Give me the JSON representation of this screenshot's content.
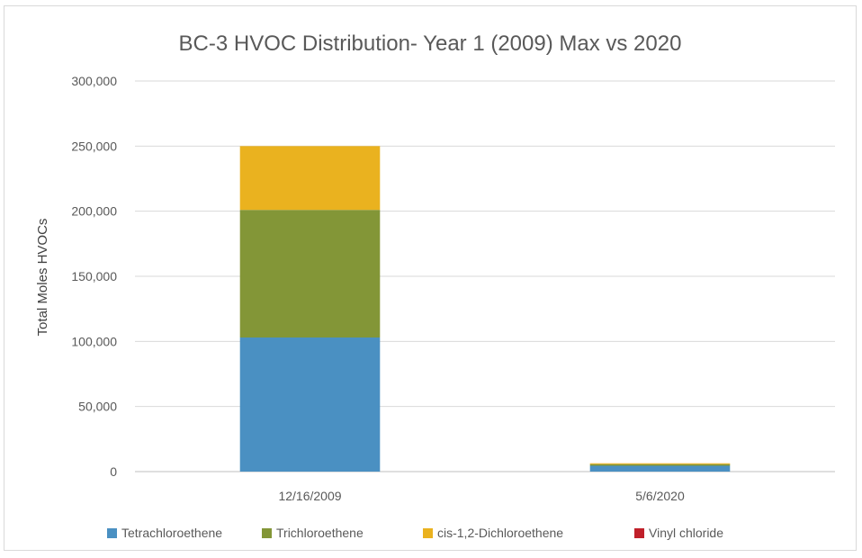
{
  "chart_data": {
    "type": "bar",
    "stacked": true,
    "title": "BC-3 HVOC Distribution- Year 1 (2009) Max vs 2020",
    "xlabel": "",
    "ylabel": "Total Moles HVOCs",
    "ylim": [
      0,
      300000
    ],
    "yticks": [
      0,
      50000,
      100000,
      150000,
      200000,
      250000,
      300000
    ],
    "ytick_labels": [
      "0",
      "50,000",
      "100,000",
      "150,000",
      "200,000",
      "250,000",
      "300,000"
    ],
    "categories": [
      "12/16/2009",
      "5/6/2020"
    ],
    "series": [
      {
        "name": "Tetrachloroethene",
        "color": "#4a90c2",
        "values": [
          103000,
          4500
        ]
      },
      {
        "name": "Trichloroethene",
        "color": "#839637",
        "values": [
          98000,
          1200
        ]
      },
      {
        "name": "cis-1,2-Dichloroethene",
        "color": "#eab21f",
        "values": [
          49000,
          700
        ]
      },
      {
        "name": "Vinyl chloride",
        "color": "#c0202a",
        "values": [
          0,
          0
        ]
      }
    ],
    "grid": true,
    "legend_position": "bottom"
  }
}
